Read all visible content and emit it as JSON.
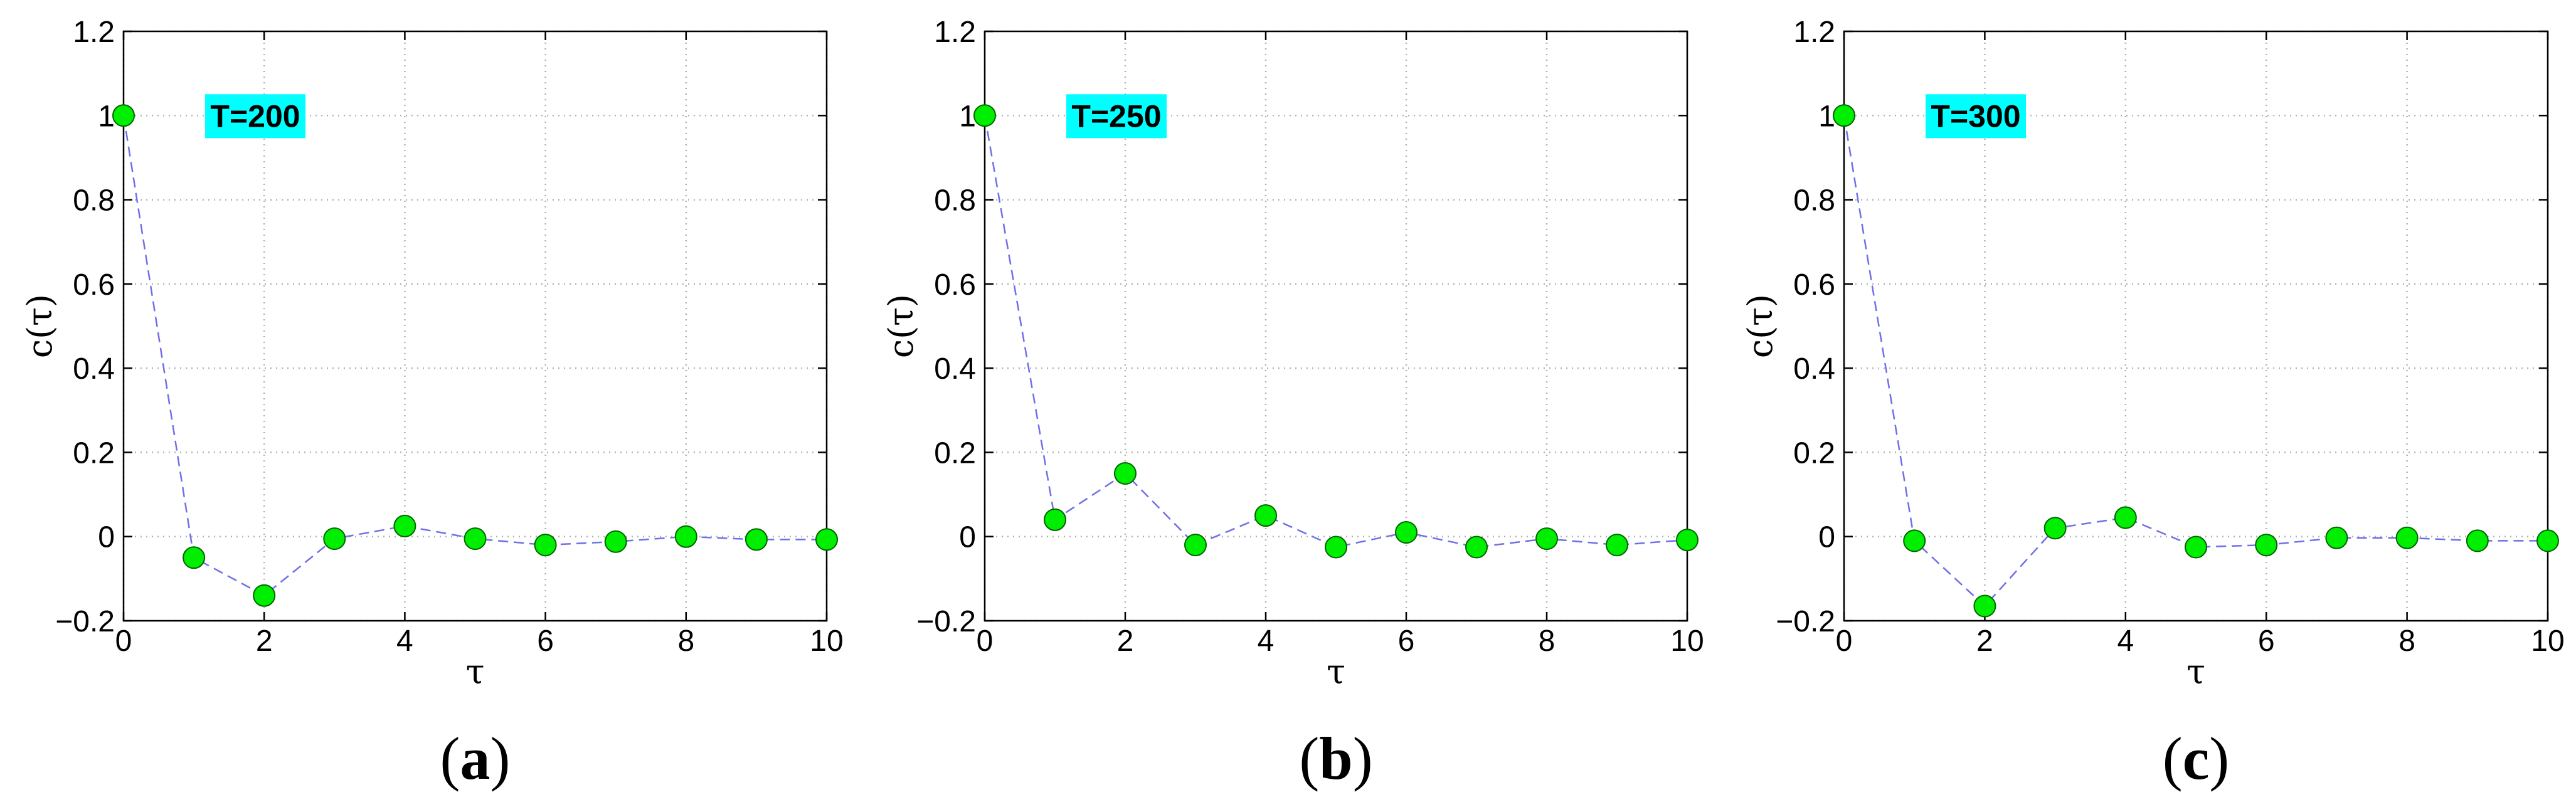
{
  "chart_data": [
    {
      "type": "line",
      "panel_label": "(a)",
      "annotation": "T=200",
      "xlabel": "τ",
      "ylabel": "c(τ)",
      "xlim": [
        0,
        10
      ],
      "ylim": [
        -0.2,
        1.2
      ],
      "xticks": [
        0,
        2,
        4,
        6,
        8,
        10
      ],
      "yticks": [
        -0.2,
        0,
        0.2,
        0.4,
        0.6,
        0.8,
        1,
        1.2
      ],
      "grid": true,
      "x": [
        0,
        1,
        2,
        3,
        4,
        5,
        6,
        7,
        8,
        9,
        10
      ],
      "y": [
        1.0,
        -0.05,
        -0.14,
        -0.005,
        0.025,
        -0.005,
        -0.02,
        -0.012,
        0.0,
        -0.007,
        -0.007
      ],
      "line_color": "#6f6fe8",
      "marker_color": "#00ee00"
    },
    {
      "type": "line",
      "panel_label": "(b)",
      "annotation": "T=250",
      "xlabel": "τ",
      "ylabel": "c(τ)",
      "xlim": [
        0,
        10
      ],
      "ylim": [
        -0.2,
        1.2
      ],
      "xticks": [
        0,
        2,
        4,
        6,
        8,
        10
      ],
      "yticks": [
        -0.2,
        0,
        0.2,
        0.4,
        0.6,
        0.8,
        1,
        1.2
      ],
      "grid": true,
      "x": [
        0,
        1,
        2,
        3,
        4,
        5,
        6,
        7,
        8,
        9,
        10
      ],
      "y": [
        1.0,
        0.04,
        0.15,
        -0.02,
        0.05,
        -0.025,
        0.01,
        -0.025,
        -0.005,
        -0.02,
        -0.008
      ],
      "line_color": "#6f6fe8",
      "marker_color": "#00ee00"
    },
    {
      "type": "line",
      "panel_label": "(c)",
      "annotation": "T=300",
      "xlabel": "τ",
      "ylabel": "c(τ)",
      "xlim": [
        0,
        10
      ],
      "ylim": [
        -0.2,
        1.2
      ],
      "xticks": [
        0,
        2,
        4,
        6,
        8,
        10
      ],
      "yticks": [
        -0.2,
        0,
        0.2,
        0.4,
        0.6,
        0.8,
        1,
        1.2
      ],
      "grid": true,
      "x": [
        0,
        1,
        2,
        3,
        4,
        5,
        6,
        7,
        8,
        9,
        10
      ],
      "y": [
        1.0,
        -0.01,
        -0.165,
        0.02,
        0.045,
        -0.025,
        -0.02,
        -0.003,
        -0.003,
        -0.01,
        -0.01
      ],
      "line_color": "#6f6fe8",
      "marker_color": "#00ee00"
    }
  ],
  "style": {
    "annotation_bg": "#00ffff",
    "grid_color": "#b0b0b0",
    "axis_color": "#000000"
  }
}
